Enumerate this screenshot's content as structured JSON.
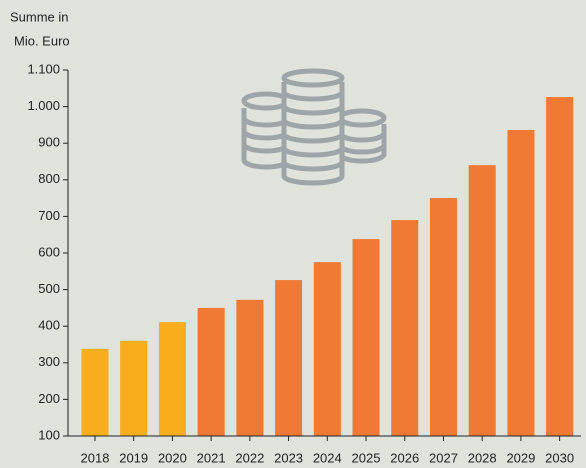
{
  "chart_data": {
    "type": "bar",
    "y_label": [
      "Summe in",
      "Mio. Euro"
    ],
    "categories": [
      "2018",
      "2019",
      "2020",
      "2021",
      "2022",
      "2023",
      "2024",
      "2025",
      "2026",
      "2027",
      "2028",
      "2029",
      "2030"
    ],
    "values": [
      338,
      360,
      411,
      450,
      472,
      526,
      575,
      638,
      690,
      750,
      840,
      936,
      1026
    ],
    "colors": [
      "#f8ad1c",
      "#f8ad1c",
      "#f8ad1c",
      "#f07a34",
      "#f07a34",
      "#f07a34",
      "#f07a34",
      "#f07a34",
      "#f07a34",
      "#f07a34",
      "#f07a34",
      "#f07a34",
      "#f07a34"
    ],
    "ylim": [
      100,
      1100
    ],
    "yticks": [
      100,
      200,
      300,
      400,
      500,
      600,
      700,
      800,
      900,
      {
        "value": 1000,
        "label": "1.000"
      },
      {
        "value": 1100,
        "label": "1.100"
      }
    ]
  }
}
